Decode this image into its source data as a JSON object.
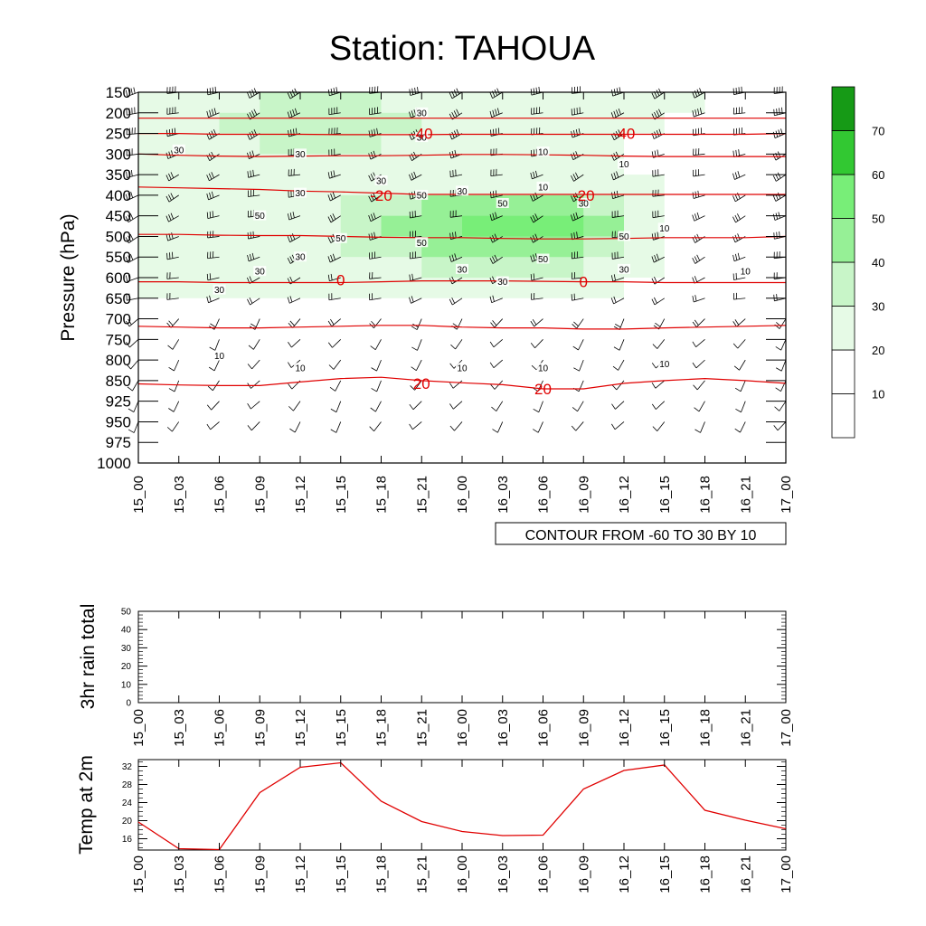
{
  "title": "Station: TAHOUA",
  "time_labels": [
    "15_00",
    "15_03",
    "15_06",
    "15_09",
    "15_12",
    "15_15",
    "15_18",
    "15_21",
    "16_00",
    "16_03",
    "16_06",
    "16_09",
    "16_12",
    "16_15",
    "16_18",
    "16_21",
    "17_00"
  ],
  "chart_data": [
    {
      "type": "heatmap",
      "title": "Station: TAHOUA",
      "ylabel": "Pressure (hPa)",
      "pressure_levels": [
        150,
        200,
        250,
        300,
        350,
        400,
        450,
        500,
        550,
        600,
        650,
        700,
        750,
        800,
        850,
        925,
        950,
        975,
        1000
      ],
      "y_reversed": true,
      "contour_note": "CONTOUR FROM -60 TO 30 BY 10",
      "colorbar_labels": [
        "10",
        "20",
        "30",
        "40",
        "50",
        "60",
        "70"
      ],
      "colors": [
        "#ffffff",
        "#ffffff",
        "#e6fae6",
        "#c8f5c8",
        "#96f096",
        "#78ee78",
        "#32c832",
        "#169a16"
      ],
      "shading_label_values": [
        {
          "value": "30",
          "time": "15_21",
          "p": 200
        },
        {
          "value": "30",
          "time": "15_21",
          "p": 260
        },
        {
          "value": "30",
          "time": "15_03",
          "p": 290
        },
        {
          "value": "30",
          "time": "15_12",
          "p": 300
        },
        {
          "value": "10",
          "time": "16_06",
          "p": 295
        },
        {
          "value": "10",
          "time": "16_12",
          "p": 325
        },
        {
          "value": "30",
          "time": "15_18",
          "p": 365
        },
        {
          "value": "30",
          "time": "15_12",
          "p": 395
        },
        {
          "value": "50",
          "time": "15_21",
          "p": 400
        },
        {
          "value": "30",
          "time": "16_00",
          "p": 390
        },
        {
          "value": "10",
          "time": "16_06",
          "p": 380
        },
        {
          "value": "50",
          "time": "16_03",
          "p": 420
        },
        {
          "value": "30",
          "time": "16_09",
          "p": 420
        },
        {
          "value": "50",
          "time": "15_09",
          "p": 450
        },
        {
          "value": "10",
          "time": "16_15",
          "p": 480
        },
        {
          "value": "50",
          "time": "15_15",
          "p": 505
        },
        {
          "value": "50",
          "time": "15_21",
          "p": 515
        },
        {
          "value": "50",
          "time": "16_12",
          "p": 500
        },
        {
          "value": "30",
          "time": "15_12",
          "p": 550
        },
        {
          "value": "50",
          "time": "16_06",
          "p": 555
        },
        {
          "value": "30",
          "time": "15_09",
          "p": 585
        },
        {
          "value": "30",
          "time": "16_00",
          "p": 580
        },
        {
          "value": "30",
          "time": "16_12",
          "p": 580
        },
        {
          "value": "10",
          "time": "16_21",
          "p": 585
        },
        {
          "value": "30",
          "time": "16_03",
          "p": 610
        },
        {
          "value": "30",
          "time": "15_06",
          "p": 630
        },
        {
          "value": "10",
          "time": "15_06",
          "p": 790
        },
        {
          "value": "10",
          "time": "15_12",
          "p": 820
        },
        {
          "value": "10",
          "time": "16_00",
          "p": 820
        },
        {
          "value": "10",
          "time": "16_06",
          "p": 820
        },
        {
          "value": "10",
          "time": "16_15",
          "p": 810
        }
      ],
      "temp_contour_labels": [
        {
          "value": "-40",
          "time": "15_21",
          "p": 250
        },
        {
          "value": "-40",
          "time": "16_12",
          "p": 250
        },
        {
          "value": "-20",
          "time": "15_18",
          "p": 400
        },
        {
          "value": "-20",
          "time": "16_09",
          "p": 400
        },
        {
          "value": "0",
          "time": "15_15",
          "p": 605
        },
        {
          "value": "0",
          "time": "16_09",
          "p": 610
        },
        {
          "value": "20",
          "time": "15_21",
          "p": 860
        },
        {
          "value": "20",
          "time": "16_06",
          "p": 880
        }
      ],
      "temp_isotherms": [
        {
          "value": -50,
          "p": [
            213,
            213,
            213,
            213,
            213,
            213,
            213,
            213,
            213,
            213,
            213,
            213,
            213,
            213,
            213,
            213,
            213
          ]
        },
        {
          "value": -40,
          "p": [
            250,
            250,
            252,
            252,
            252,
            253,
            253,
            253,
            252,
            252,
            252,
            252,
            252,
            252,
            252,
            252,
            250
          ]
        },
        {
          "value": -30,
          "p": [
            300,
            303,
            305,
            306,
            305,
            304,
            304,
            303,
            301,
            301,
            302,
            303,
            305,
            306,
            306,
            306,
            306
          ]
        },
        {
          "value": -20,
          "p": [
            380,
            382,
            384,
            386,
            390,
            392,
            395,
            398,
            398,
            398,
            398,
            398,
            398,
            398,
            398,
            398,
            398
          ]
        },
        {
          "value": -10,
          "p": [
            495,
            495,
            497,
            498,
            498,
            500,
            502,
            503,
            503,
            505,
            506,
            506,
            505,
            503,
            503,
            503,
            500
          ]
        },
        {
          "value": 0,
          "p": [
            610,
            610,
            612,
            612,
            612,
            612,
            610,
            608,
            608,
            608,
            609,
            610,
            610,
            612,
            612,
            612,
            612
          ]
        },
        {
          "value": 10,
          "p": [
            718,
            720,
            722,
            722,
            720,
            718,
            716,
            716,
            720,
            722,
            722,
            725,
            725,
            722,
            720,
            718,
            716
          ]
        },
        {
          "value": 20,
          "p": [
            862,
            866,
            868,
            868,
            855,
            845,
            842,
            850,
            858,
            865,
            880,
            880,
            860,
            850,
            845,
            850,
            860
          ]
        }
      ]
    },
    {
      "type": "bar",
      "ylabel": "3hr rain total",
      "ylim": [
        0,
        50
      ],
      "yticks": [
        "0",
        "10",
        "20",
        "30",
        "40",
        "50"
      ],
      "values": [
        0,
        0,
        0,
        0,
        0,
        0,
        0,
        0,
        0,
        0,
        0,
        0,
        0,
        0,
        0,
        0,
        0
      ]
    },
    {
      "type": "line",
      "ylabel": "Temp at 2m",
      "ylim": [
        13.5,
        33.5
      ],
      "yticks": [
        "16",
        "20",
        "24",
        "28",
        "32"
      ],
      "color": "#e00000",
      "values": [
        19.7,
        13.8,
        13.6,
        26.2,
        31.8,
        32.8,
        24.3,
        19.8,
        17.6,
        16.7,
        16.8,
        27.0,
        31.1,
        32.3,
        22.3,
        20.1,
        18.2
      ]
    }
  ]
}
